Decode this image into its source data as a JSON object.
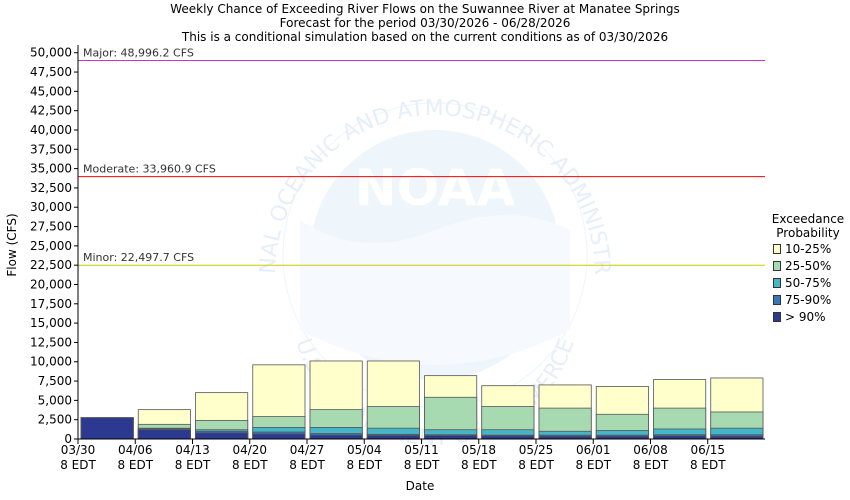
{
  "chart_data": {
    "type": "bar",
    "title": [
      "Weekly Chance of Exceeding River Flows on the Suwannee River at Manatee Springs",
      "Forecast for the period 03/30/2026 - 06/28/2026",
      "This is a conditional simulation based on the current conditions as of 03/30/2026"
    ],
    "xlabel": "Date",
    "ylabel": "Flow (CFS)",
    "ylim": [
      0,
      51000
    ],
    "yticks": [
      "0",
      "2,500",
      "5,000",
      "7,500",
      "10,000",
      "12,500",
      "15,000",
      "17,500",
      "20,000",
      "22,500",
      "25,000",
      "27,500",
      "30,000",
      "32,500",
      "35,000",
      "37,500",
      "40,000",
      "42,500",
      "45,000",
      "47,500",
      "50,000"
    ],
    "xticks": [
      {
        "date": "03/30",
        "tz": "8 EDT"
      },
      {
        "date": "04/06",
        "tz": "8 EDT"
      },
      {
        "date": "04/13",
        "tz": "8 EDT"
      },
      {
        "date": "04/20",
        "tz": "8 EDT"
      },
      {
        "date": "04/27",
        "tz": "8 EDT"
      },
      {
        "date": "05/04",
        "tz": "8 EDT"
      },
      {
        "date": "05/11",
        "tz": "8 EDT"
      },
      {
        "date": "05/18",
        "tz": "8 EDT"
      },
      {
        "date": "05/25",
        "tz": "8 EDT"
      },
      {
        "date": "06/01",
        "tz": "8 EDT"
      },
      {
        "date": "06/08",
        "tz": "8 EDT"
      },
      {
        "date": "06/15",
        "tz": "8 EDT"
      }
    ],
    "weeks": [
      {
        "start": "03/30",
        "levels": [
          2750,
          2750,
          2750,
          2750,
          2750
        ]
      },
      {
        "start": "04/06",
        "levels": [
          1200,
          1300,
          1400,
          1900,
          3800
        ]
      },
      {
        "start": "04/13",
        "levels": [
          800,
          1000,
          1200,
          2400,
          6000
        ]
      },
      {
        "start": "04/20",
        "levels": [
          650,
          900,
          1500,
          2900,
          9600
        ]
      },
      {
        "start": "04/27",
        "levels": [
          500,
          700,
          1500,
          3800,
          10100
        ]
      },
      {
        "start": "05/04",
        "levels": [
          450,
          600,
          1400,
          4200,
          10100
        ]
      },
      {
        "start": "05/11",
        "levels": [
          450,
          550,
          1200,
          5400,
          8200
        ]
      },
      {
        "start": "05/18",
        "levels": [
          400,
          500,
          1200,
          4200,
          6900
        ]
      },
      {
        "start": "05/25",
        "levels": [
          350,
          500,
          1000,
          4000,
          7000
        ]
      },
      {
        "start": "06/01",
        "levels": [
          350,
          500,
          1100,
          3200,
          6800
        ]
      },
      {
        "start": "06/08",
        "levels": [
          400,
          550,
          1300,
          4000,
          7700
        ]
      },
      {
        "start": "06/15",
        "levels": [
          350,
          550,
          1400,
          3500,
          7900
        ]
      }
    ],
    "series": [
      {
        "name": "> 90%",
        "color": "#2b3990"
      },
      {
        "name": "75-90%",
        "color": "#3a75b8"
      },
      {
        "name": "50-75%",
        "color": "#45b6c6"
      },
      {
        "name": "25-50%",
        "color": "#a8dab2"
      },
      {
        "name": "10-25%",
        "color": "#ffffcc"
      }
    ],
    "thresholds": [
      {
        "label": "Major: 48,996.2 CFS",
        "value": 48996.2,
        "color": "#cc33cc"
      },
      {
        "label": "Moderate: 33,960.9 CFS",
        "value": 33960.9,
        "color": "#ff0000"
      },
      {
        "label": "Minor: 22,497.7 CFS",
        "value": 22497.7,
        "color": "#cccc00"
      }
    ],
    "legend": {
      "title": [
        "Exceedance",
        "Probability"
      ],
      "placement": "right"
    },
    "grid": false
  },
  "watermark": {
    "logo_text": "NOAA",
    "ring_top": "NATIONAL OCEANIC AND ATMOSPHERIC ADMINISTRATION",
    "ring_bottom": "U.S. DEPARTMENT OF COMMERCE"
  }
}
